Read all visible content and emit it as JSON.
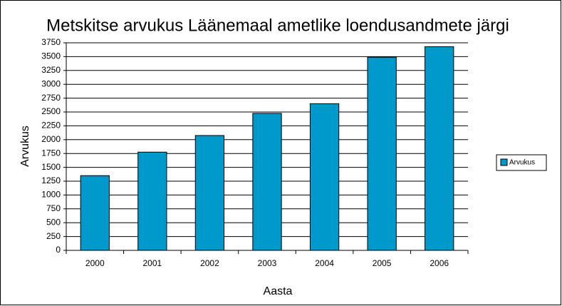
{
  "chart_data": {
    "type": "bar",
    "title": "Metskitse arvukus Läänemaal ametlike loendusandmete järgi",
    "x_label": "Aasta",
    "y_label": "Arvukus",
    "categories": [
      "2000",
      "2001",
      "2002",
      "2003",
      "2004",
      "2005",
      "2006"
    ],
    "series": [
      {
        "name": "Arvukus",
        "color": "#0099cc",
        "values": [
          1350,
          1775,
          2075,
          2475,
          2650,
          3490,
          3680
        ]
      }
    ],
    "ylim": [
      0,
      3750
    ],
    "yticks": [
      0,
      250,
      500,
      750,
      1000,
      1250,
      1500,
      1750,
      2000,
      2250,
      2500,
      2750,
      3000,
      3250,
      3500,
      3750
    ],
    "grid": true,
    "legend": "right"
  }
}
